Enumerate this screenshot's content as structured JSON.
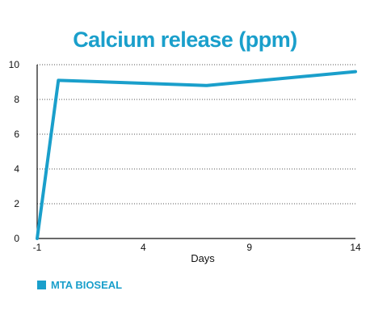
{
  "chart_data": {
    "type": "line",
    "title": "Calcium release (ppm)",
    "xlabel": "Days",
    "ylabel": "",
    "x_ticks": [
      "-1",
      "4",
      "9",
      "14"
    ],
    "y_ticks": [
      "0",
      "2",
      "4",
      "6",
      "8",
      "10"
    ],
    "xlim": [
      -1,
      14
    ],
    "ylim": [
      0,
      10
    ],
    "grid": "horizontal-dotted",
    "legend_position": "bottom-left",
    "series": [
      {
        "name": "MTA BIOSEAL",
        "x": [
          -1,
          0,
          7,
          14
        ],
        "y": [
          0,
          9.1,
          8.8,
          9.6
        ]
      }
    ]
  },
  "colors": {
    "accent": "#1a9fcb",
    "axis": "#111111",
    "grid": "#555555",
    "text": "#111111"
  }
}
